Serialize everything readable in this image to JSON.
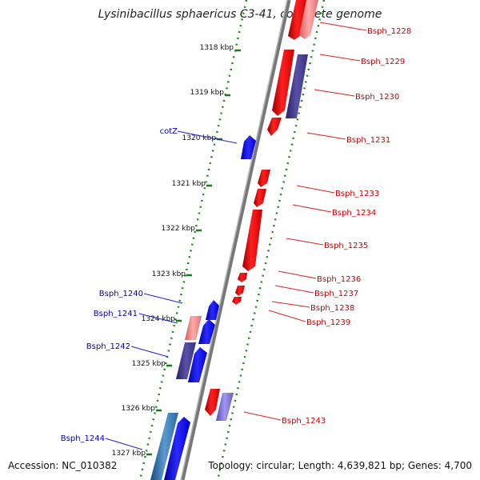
{
  "title": "Lysinibacillus sphaericus C3-41, complete genome",
  "footer": {
    "accession": "Accession: NC_010382",
    "topology": "Topology: circular; Length: 4,639,821 bp; Genes: 4,700"
  },
  "ticks": [
    "1318 kbp",
    "1319 kbp",
    "1320 kbp",
    "1321 kbp",
    "1322 kbp",
    "1323 kbp",
    "1324 kbp",
    "1325 kbp",
    "1326 kbp",
    "1327 kbp"
  ],
  "genes_right": [
    "Bsph_1228",
    "Bsph_1229",
    "Bsph_1230",
    "Bsph_1231",
    "Bsph_1233",
    "Bsph_1234",
    "Bsph_1235",
    "Bsph_1236",
    "Bsph_1237",
    "Bsph_1238",
    "Bsph_1239",
    "Bsph_1243"
  ],
  "genes_left": [
    "cotZ",
    "Bsph_1240",
    "Bsph_1241",
    "Bsph_1242",
    "Bsph_1244"
  ],
  "colors": {
    "forward_strand": "#0000ee",
    "reverse_strand": "#ee0000",
    "dotted_track": "#1a8a1a",
    "backbone": "#888888",
    "label_red": "#cc0000",
    "label_blue": "#0000bb"
  }
}
